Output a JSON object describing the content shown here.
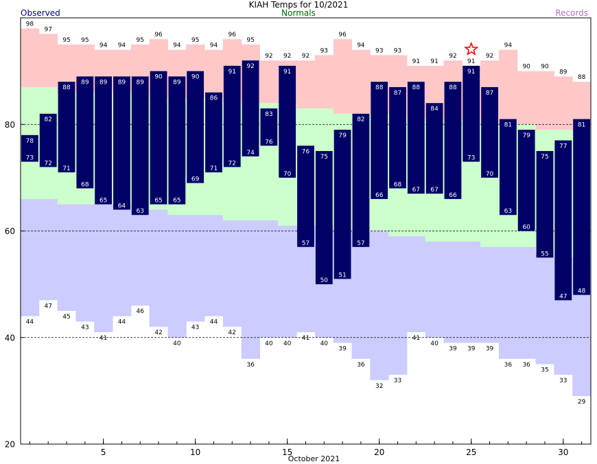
{
  "chart_data": {
    "type": "bar",
    "title": "KIAH Temps for 10/2021",
    "xlabel": "October 2021",
    "ylabel": "",
    "legend": {
      "observed": "Observed",
      "normals": "Normals",
      "records": "Records"
    },
    "x_ticks": [
      5,
      10,
      15,
      20,
      25,
      30
    ],
    "y_ticks": [
      20,
      40,
      60,
      80
    ],
    "ylim": [
      20,
      100
    ],
    "xlim": [
      0.5,
      31.5
    ],
    "gridlines_y": [
      40,
      60,
      80
    ],
    "days": [
      1,
      2,
      3,
      4,
      5,
      6,
      7,
      8,
      9,
      10,
      11,
      12,
      13,
      14,
      15,
      16,
      17,
      18,
      19,
      20,
      21,
      22,
      23,
      24,
      25,
      26,
      27,
      28,
      29,
      30,
      31
    ],
    "record_high": [
      98,
      97,
      95,
      95,
      94,
      94,
      95,
      96,
      94,
      95,
      94,
      96,
      95,
      92,
      92,
      92,
      93,
      96,
      94,
      93,
      93,
      91,
      91,
      92,
      91,
      92,
      94,
      90,
      90,
      89,
      88
    ],
    "record_low": [
      44,
      47,
      45,
      43,
      41,
      44,
      46,
      42,
      40,
      43,
      44,
      42,
      36,
      40,
      40,
      41,
      40,
      39,
      36,
      32,
      33,
      41,
      40,
      39,
      39,
      39,
      36,
      36,
      35,
      33,
      29
    ],
    "normal_high": [
      87,
      87,
      86,
      86,
      86,
      86,
      86,
      85,
      85,
      85,
      85,
      84,
      84,
      84,
      84,
      83,
      83,
      82,
      82,
      82,
      82,
      81,
      81,
      81,
      81,
      80,
      80,
      80,
      79,
      79,
      79
    ],
    "normal_low": [
      66,
      66,
      65,
      65,
      65,
      65,
      64,
      64,
      63,
      63,
      63,
      62,
      62,
      62,
      61,
      61,
      61,
      60,
      60,
      60,
      59,
      59,
      58,
      58,
      58,
      57,
      57,
      57,
      56,
      55,
      55
    ],
    "observed_high": [
      78,
      82,
      88,
      89,
      89,
      89,
      89,
      90,
      89,
      90,
      86,
      91,
      92,
      83,
      91,
      76,
      75,
      79,
      82,
      88,
      87,
      88,
      84,
      88,
      91,
      87,
      81,
      79,
      75,
      77,
      81
    ],
    "observed_low": [
      73,
      72,
      71,
      68,
      65,
      64,
      63,
      65,
      65,
      69,
      71,
      72,
      74,
      76,
      70,
      57,
      50,
      51,
      57,
      66,
      68,
      67,
      67,
      66,
      73,
      70,
      63,
      60,
      55,
      47,
      48
    ],
    "record_markers": [
      {
        "day": 25,
        "type": "record_high_tied",
        "value": 91
      }
    ],
    "colors": {
      "records_band": "#ffc8c8",
      "normals_band": "#ccffcc",
      "lows_band": "#ccccff",
      "observed_bar": "#000066",
      "grid": "#000000",
      "star": "#ff0000",
      "observed_text": "#000080",
      "normals_text": "#006400",
      "records_text": "#b070c0"
    }
  }
}
